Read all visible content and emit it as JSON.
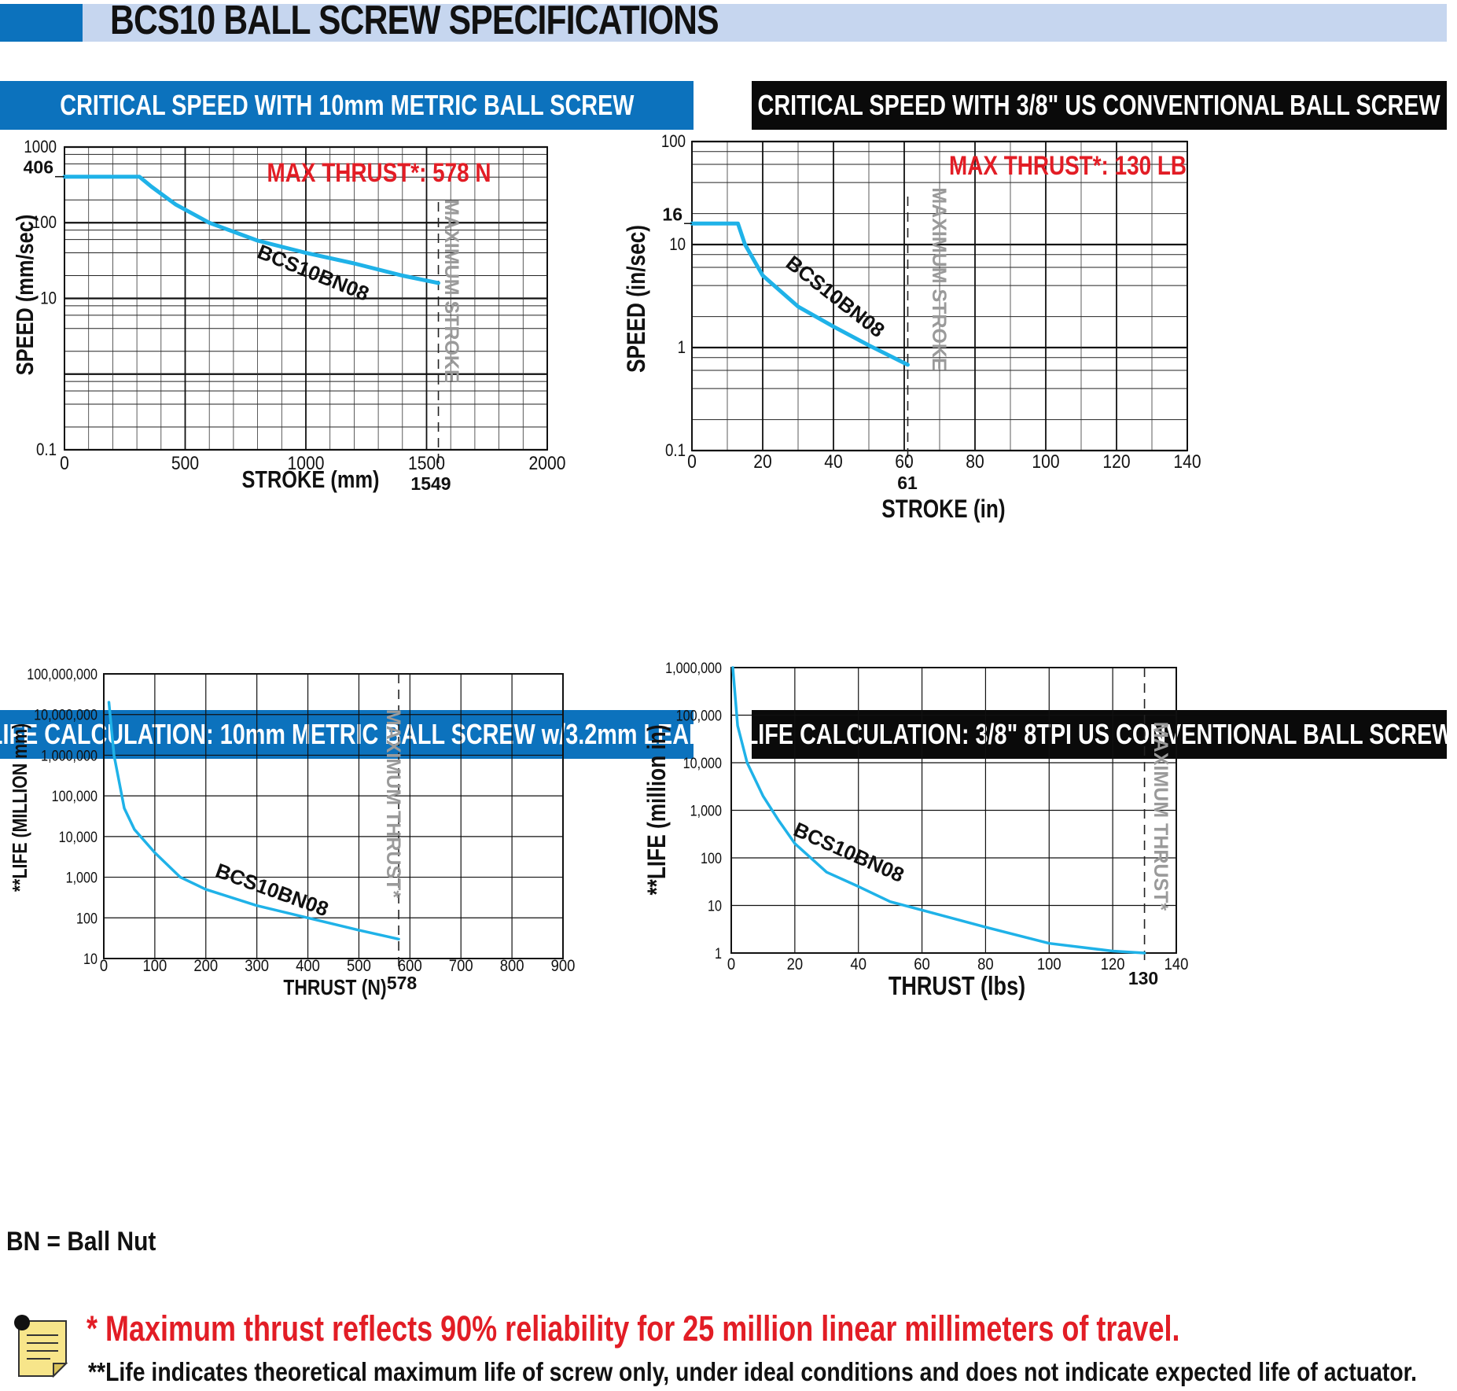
{
  "title": "BCS10 BALL SCREW SPECIFICATIONS",
  "bn_note": "BN = Ball Nut",
  "footnotes": {
    "thrust": "* Maximum thrust reflects 90% reliability for 25 million linear millimeters of travel.",
    "life": "**Life indicates theoretical maximum life of screw only, under ideal conditions and does not indicate expected life of actuator."
  },
  "colors": {
    "curve": "#1fb2e8",
    "accent_blue": "#0c72bd",
    "title_band": "#c6d6ef",
    "max_thrust_red": "#e21d25",
    "max_line_gray": "#9a9a9a"
  },
  "icons": {
    "note": "note-icon"
  },
  "chart_data": [
    {
      "id": "speed_metric",
      "type": "line",
      "header": "CRITICAL SPEED WITH 10mm METRIC BALL SCREW",
      "xlabel": "STROKE (mm)",
      "ylabel": "SPEED (mm/sec)",
      "yscale": "log",
      "xlim": [
        0,
        2000
      ],
      "ylim": [
        0.1,
        1000
      ],
      "xticks": [
        0,
        500,
        1000,
        1500,
        2000
      ],
      "xtick_labels": [
        "0",
        "500",
        "1000",
        "1500",
        "2000"
      ],
      "yticks": [
        0.1,
        10,
        100,
        1000
      ],
      "ytick_labels": [
        "0.1",
        "10",
        "100",
        "1000"
      ],
      "highlight_y": {
        "value": 406,
        "label": "406"
      },
      "max_line": {
        "value": 1549,
        "label": "1549",
        "text": "MAXIMUM STROKE"
      },
      "max_thrust_label": "MAX THRUST*: 578 N",
      "series": [
        {
          "name": "BCS10BN08",
          "x": [
            0,
            310,
            360,
            460,
            600,
            800,
            1000,
            1200,
            1400,
            1549
          ],
          "y": [
            406,
            406,
            300,
            175,
            100,
            58,
            40,
            29,
            20,
            16
          ]
        }
      ]
    },
    {
      "id": "speed_us",
      "type": "line",
      "header": "CRITICAL SPEED WITH 3/8\" US CONVENTIONAL BALL SCREW",
      "xlabel": "STROKE (in)",
      "ylabel": "SPEED (in/sec)",
      "yscale": "log",
      "xlim": [
        0,
        140
      ],
      "ylim": [
        0.1,
        100
      ],
      "xticks": [
        0,
        20,
        40,
        60,
        80,
        100,
        120,
        140
      ],
      "xtick_labels": [
        "0",
        "20",
        "40",
        "60",
        "80",
        "100",
        "120",
        "140"
      ],
      "yticks": [
        0.1,
        1,
        10,
        100
      ],
      "ytick_labels": [
        "0.1",
        "1",
        "10",
        "100"
      ],
      "highlight_y": {
        "value": 16,
        "label": "16"
      },
      "max_line": {
        "value": 61,
        "label": "61",
        "text": "MAXIMUM STROKE"
      },
      "max_thrust_label": "MAX THRUST*: 130 LB",
      "series": [
        {
          "name": "BCS10BN08",
          "x": [
            0,
            13,
            15,
            20,
            30,
            40,
            50,
            61
          ],
          "y": [
            16,
            16,
            10,
            5,
            2.5,
            1.6,
            1.05,
            0.68
          ]
        }
      ]
    },
    {
      "id": "life_metric",
      "type": "line",
      "header": "LIFE CALCULATION: 10mm METRIC BALL SCREW w/3.2mm LEAD",
      "xlabel": "THRUST (N)",
      "ylabel": "**LIFE (MILLION mm)",
      "yscale": "log",
      "xlim": [
        0,
        900
      ],
      "ylim": [
        10,
        100000000
      ],
      "xticks": [
        0,
        100,
        200,
        300,
        400,
        500,
        600,
        700,
        800,
        900
      ],
      "xtick_labels": [
        "0",
        "100",
        "200",
        "300",
        "400",
        "500",
        "600",
        "700",
        "800",
        "900"
      ],
      "yticks": [
        10,
        100,
        1000,
        10000,
        100000,
        1000000,
        10000000,
        100000000
      ],
      "ytick_labels": [
        "10",
        "100",
        "1,000",
        "10,000",
        "100,000",
        "1,000,000",
        "10,000,000",
        "100,000,000"
      ],
      "max_line": {
        "value": 578,
        "label": "578",
        "text": "MAXIMUM THRUST*"
      },
      "series": [
        {
          "name": "BCS10BN08",
          "x": [
            10,
            20,
            40,
            60,
            100,
            150,
            200,
            300,
            400,
            500,
            578
          ],
          "y": [
            20000000,
            1000000,
            50000,
            15000,
            4000,
            1000,
            500,
            200,
            100,
            50,
            30
          ]
        }
      ]
    },
    {
      "id": "life_us",
      "type": "line",
      "header": "LIFE CALCULATION: 3/8\" 8TPI US CONVENTIONAL BALL SCREW",
      "xlabel": "THRUST (lbs)",
      "ylabel": "**LIFE (million in)",
      "yscale": "log",
      "xlim": [
        0,
        140
      ],
      "ylim": [
        1,
        1000000
      ],
      "xticks": [
        0,
        20,
        40,
        60,
        80,
        100,
        120,
        140
      ],
      "xtick_labels": [
        "0",
        "20",
        "40",
        "60",
        "80",
        "100",
        "120",
        "140"
      ],
      "yticks": [
        1,
        10,
        100,
        1000,
        10000,
        100000,
        1000000
      ],
      "ytick_labels": [
        "1",
        "10",
        "100",
        "1,000",
        "10,000",
        "100,000",
        "1,000,000"
      ],
      "max_line": {
        "value": 130,
        "label": "130",
        "text": "MAXIMUM THRUST*"
      },
      "series": [
        {
          "name": "BCS10BN08",
          "x": [
            0.5,
            2,
            5,
            10,
            15,
            20,
            30,
            40,
            50,
            60,
            80,
            100,
            120,
            130
          ],
          "y": [
            1000000,
            60000,
            10000,
            2000,
            600,
            200,
            50,
            25,
            12,
            8,
            3.5,
            1.6,
            1.1,
            1
          ]
        }
      ]
    }
  ]
}
